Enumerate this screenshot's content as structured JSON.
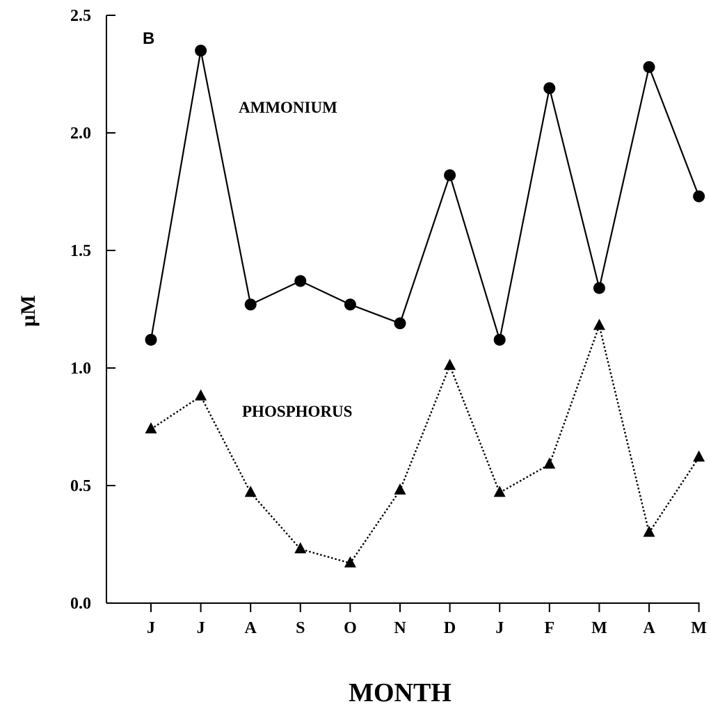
{
  "chart_data": {
    "type": "line",
    "panel_label": "B",
    "xlabel": "MONTH",
    "ylabel": "μM",
    "categories": [
      "J",
      "J",
      "A",
      "S",
      "O",
      "N",
      "D",
      "J",
      "F",
      "M",
      "A",
      "M"
    ],
    "ylim": [
      0,
      2.5
    ],
    "yticks": [
      "0.0",
      "0.5",
      "1.0",
      "1.5",
      "2.0",
      "2.5"
    ],
    "grid": false,
    "legend": "none",
    "series": [
      {
        "name": "AMMONIUM",
        "marker": "circle",
        "line": "solid",
        "values": [
          1.12,
          2.35,
          1.27,
          1.37,
          1.27,
          1.19,
          1.82,
          1.12,
          2.19,
          1.34,
          2.28,
          1.73
        ]
      },
      {
        "name": "PHOSPHORUS",
        "marker": "triangle",
        "line": "dotted",
        "values": [
          0.74,
          0.88,
          0.47,
          0.23,
          0.17,
          0.48,
          1.01,
          0.47,
          0.59,
          1.18,
          0.3,
          0.62
        ]
      }
    ],
    "colors": {
      "ink": "#000000",
      "background": "#ffffff"
    }
  }
}
